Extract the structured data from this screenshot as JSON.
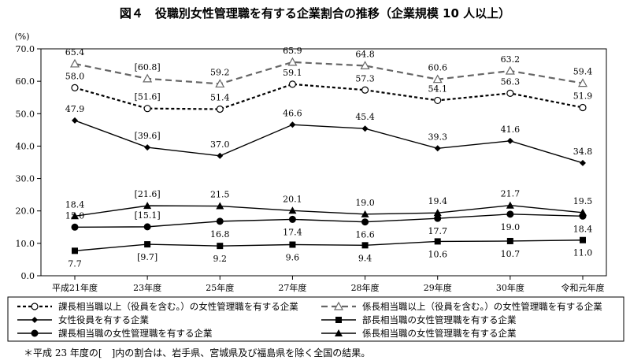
{
  "chart_data": {
    "type": "line",
    "title": "図４　役職別女性管理職を有する企業割合の推移（企業規模 10 人以上）",
    "ylabel": "(%)",
    "ylim": [
      0,
      70
    ],
    "yticks": [
      "0.0",
      "10.0",
      "20.0",
      "30.0",
      "40.0",
      "50.0",
      "60.0",
      "70.0"
    ],
    "categories": [
      "平成21年度",
      "23年度",
      "25年度",
      "27年度",
      "28年度",
      "29年度",
      "30年度",
      "令和元年度"
    ],
    "grid": false,
    "legend_position": "bottom",
    "footnote": "＊平成 23 年度の[　]内の割合は、岩手県、宮城県及び福島県を除く全国の結果。",
    "series": [
      {
        "key": "kakari",
        "name": "係長相当職以上（役員を含む。）の女性管理職を有する企業",
        "style": "dashed-gray",
        "marker": "open-triangle",
        "color": "#666666",
        "values": [
          65.4,
          60.8,
          59.2,
          65.9,
          64.8,
          60.6,
          63.2,
          59.4
        ],
        "labels": [
          "65.4",
          "[60.8]",
          "59.2",
          "65.9",
          "64.8",
          "60.6",
          "63.2",
          "59.4"
        ],
        "label_side": [
          "above",
          "above",
          "above",
          "above",
          "above",
          "above",
          "above",
          "above"
        ]
      },
      {
        "key": "kacho",
        "name": "課長相当職以上（役員を含む。）の女性管理職を有する企業",
        "style": "dashed-black",
        "marker": "open-circle",
        "color": "#000000",
        "values": [
          58.0,
          51.6,
          51.4,
          59.1,
          57.3,
          54.1,
          56.3,
          51.9
        ],
        "labels": [
          "58.0",
          "[51.6]",
          "51.4",
          "59.1",
          "57.3",
          "54.1",
          "56.3",
          "51.9"
        ],
        "label_side": [
          "above",
          "above",
          "above",
          "above",
          "above",
          "above",
          "above",
          "above"
        ]
      },
      {
        "key": "yakuin",
        "name": "女性役員を有する企業",
        "style": "solid",
        "marker": "filled-diamond",
        "color": "#000000",
        "values": [
          47.9,
          39.6,
          37.0,
          46.6,
          45.4,
          39.3,
          41.6,
          34.8
        ],
        "labels": [
          "47.9",
          "[39.6]",
          "37.0",
          "46.6",
          "45.4",
          "39.3",
          "41.6",
          "34.8"
        ],
        "label_side": [
          "above",
          "above",
          "above",
          "above",
          "above",
          "above",
          "above",
          "above"
        ]
      },
      {
        "key": "kakari_only",
        "name": "係長相当職の女性管理職を有する企業",
        "style": "solid",
        "marker": "filled-triangle",
        "color": "#000000",
        "values": [
          18.4,
          21.6,
          21.5,
          20.1,
          19.0,
          19.4,
          21.7,
          19.5
        ],
        "labels": [
          "18.4",
          "[21.6]",
          "21.5",
          "20.1",
          "19.0",
          "19.4",
          "21.7",
          "19.5"
        ],
        "label_side": [
          "above",
          "above",
          "above",
          "above",
          "above",
          "above",
          "above",
          "above"
        ]
      },
      {
        "key": "kacho_only",
        "name": "課長相当職の女性管理職を有する企業",
        "style": "solid",
        "marker": "filled-circle",
        "color": "#000000",
        "values": [
          15.0,
          15.1,
          16.8,
          17.4,
          16.6,
          17.7,
          19.0,
          18.4
        ],
        "labels": [
          "15.0",
          "[15.1]",
          "16.8",
          "17.4",
          "16.6",
          "17.7",
          "19.0",
          "18.4"
        ],
        "label_side": [
          "above",
          "above",
          "below",
          "below",
          "below",
          "below",
          "below",
          "below"
        ]
      },
      {
        "key": "bucho",
        "name": "部長相当職の女性管理職を有する企業",
        "style": "solid",
        "marker": "filled-square",
        "color": "#000000",
        "values": [
          7.7,
          9.7,
          9.2,
          9.6,
          9.4,
          10.6,
          10.7,
          11.0
        ],
        "labels": [
          "7.7",
          "[9.7]",
          "9.2",
          "9.6",
          "9.4",
          "10.6",
          "10.7",
          "11.0"
        ],
        "label_side": [
          "below",
          "below",
          "below",
          "below",
          "below",
          "below",
          "below",
          "below"
        ]
      }
    ],
    "legend_order": [
      "kacho",
      "kakari",
      "yakuin",
      "bucho",
      "kacho_only",
      "kakari_only"
    ]
  }
}
